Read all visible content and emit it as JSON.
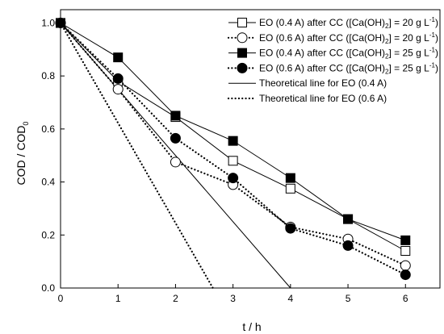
{
  "chart_data": {
    "type": "line",
    "xlim": [
      0,
      6.6
    ],
    "ylim": [
      0,
      1.05
    ],
    "x_ticks": [
      "0",
      "1",
      "2",
      "3",
      "4",
      "5",
      "6"
    ],
    "y_ticks": [
      "0.0",
      "0.2",
      "0.4",
      "0.6",
      "0.8",
      "1.0"
    ],
    "xlabel": "t / h",
    "ylabel": "COD / COD",
    "ylabel_subscript": "0",
    "grid": false,
    "legend_position": "top-right",
    "series": [
      {
        "name": "EO (0.4 A) after CC ([Ca(OH)2] = 20 g L-1)",
        "legend": {
          "pre": "EO (0.4 A) after CC ([Ca(OH)",
          "sub": "2",
          "mid": "] = 20 g L",
          "sup": "-1",
          "post": ")"
        },
        "line": "solid",
        "marker": "square",
        "marker_fill": "open",
        "x": [
          0,
          1,
          2,
          3,
          4,
          5,
          6
        ],
        "y": [
          1.0,
          0.78,
          0.645,
          0.48,
          0.375,
          0.26,
          0.14
        ]
      },
      {
        "name": "EO (0.6 A) after CC ([Ca(OH)2] = 20 g L-1)",
        "legend": {
          "pre": "EO (0.6 A) after CC ([Ca(OH)",
          "sub": "2",
          "mid": "] = 20 g L",
          "sup": "-1",
          "post": ")"
        },
        "line": "dotted",
        "marker": "circle",
        "marker_fill": "open",
        "x": [
          0,
          1,
          2,
          3,
          4,
          5,
          6
        ],
        "y": [
          1.0,
          0.75,
          0.475,
          0.39,
          0.23,
          0.185,
          0.085
        ]
      },
      {
        "name": "EO (0.4 A) after CC ([Ca(OH)2] = 25 g L-1)",
        "legend": {
          "pre": "EO (0.4 A) after CC ([Ca(OH)",
          "sub": "2",
          "mid": "] = 25 g L",
          "sup": "-1",
          "post": ")"
        },
        "line": "solid",
        "marker": "square",
        "marker_fill": "filled",
        "x": [
          0,
          1,
          2,
          3,
          4,
          5,
          6
        ],
        "y": [
          1.0,
          0.87,
          0.65,
          0.555,
          0.415,
          0.26,
          0.18
        ]
      },
      {
        "name": "EO (0.6 A) after CC ([Ca(OH)2] = 25 g L-1)",
        "legend": {
          "pre": "EO (0.6 A) after CC ([Ca(OH)",
          "sub": "2",
          "mid": "] = 25 g L",
          "sup": "-1",
          "post": ")"
        },
        "line": "dotted",
        "marker": "circle",
        "marker_fill": "filled",
        "x": [
          0,
          1,
          2,
          3,
          4,
          5,
          6
        ],
        "y": [
          1.0,
          0.79,
          0.565,
          0.415,
          0.225,
          0.16,
          0.05
        ]
      },
      {
        "name": "Theoretical line for EO (0.4 A)",
        "legend": {
          "pre": "Theoretical line for EO (0.4 A)"
        },
        "line": "solid",
        "marker": "none",
        "marker_fill": "none",
        "x": [
          0,
          4.0
        ],
        "y": [
          1.0,
          0.0
        ]
      },
      {
        "name": "Theoretical line for EO (0.6 A)",
        "legend": {
          "pre": "Theoretical line for EO (0.6 A)"
        },
        "line": "dotted",
        "marker": "none",
        "marker_fill": "none",
        "x": [
          0,
          2.65
        ],
        "y": [
          1.0,
          0.0
        ]
      }
    ]
  }
}
